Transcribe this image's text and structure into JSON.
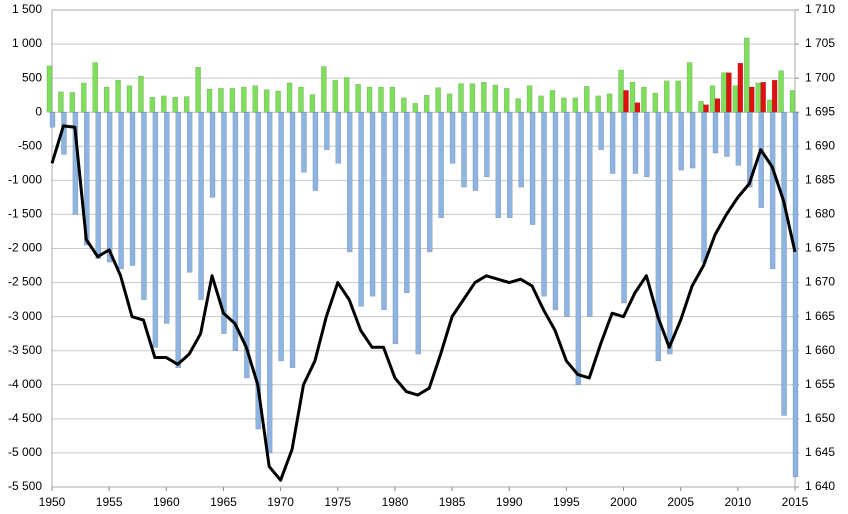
{
  "chart_data": {
    "type": "bar_line",
    "x": [
      1950,
      1951,
      1952,
      1953,
      1954,
      1955,
      1956,
      1957,
      1958,
      1959,
      1960,
      1961,
      1962,
      1963,
      1964,
      1965,
      1966,
      1967,
      1968,
      1969,
      1970,
      1971,
      1972,
      1973,
      1974,
      1975,
      1976,
      1977,
      1978,
      1979,
      1980,
      1981,
      1982,
      1983,
      1984,
      1985,
      1986,
      1987,
      1988,
      1989,
      1990,
      1991,
      1992,
      1993,
      1994,
      1995,
      1996,
      1997,
      1998,
      1999,
      2000,
      2001,
      2002,
      2003,
      2004,
      2005,
      2006,
      2007,
      2008,
      2009,
      2010,
      2011,
      2012,
      2013,
      2014,
      2015
    ],
    "xlim": [
      1950,
      2015
    ],
    "xticks": [
      1950,
      1955,
      1960,
      1965,
      1970,
      1975,
      1980,
      1985,
      1990,
      1995,
      2000,
      2005,
      2010,
      2015
    ],
    "ylim": [
      -5500,
      1500
    ],
    "yticks": [
      {
        "value": -5500,
        "label": "-5 500"
      },
      {
        "value": -5000,
        "label": "-5 000"
      },
      {
        "value": -4500,
        "label": "-4 500"
      },
      {
        "value": -4000,
        "label": "-4 000"
      },
      {
        "value": -3500,
        "label": "-3 500"
      },
      {
        "value": -3000,
        "label": "-3 000"
      },
      {
        "value": -2500,
        "label": "-2 500"
      },
      {
        "value": -2000,
        "label": "-2 000"
      },
      {
        "value": -1500,
        "label": "-1 500"
      },
      {
        "value": -1000,
        "label": "-1 000"
      },
      -500,
      0,
      500,
      {
        "value": 1000,
        "label": "1 000"
      },
      {
        "value": 1500,
        "label": "1 500"
      }
    ],
    "y2lim": [
      1640,
      1710
    ],
    "y2ticks": [
      {
        "value": 1640,
        "label": "1 640"
      },
      {
        "value": 1645,
        "label": "1 645"
      },
      {
        "value": 1650,
        "label": "1 650"
      },
      {
        "value": 1655,
        "label": "1 655"
      },
      {
        "value": 1660,
        "label": "1 660"
      },
      {
        "value": 1665,
        "label": "1 665"
      },
      {
        "value": 1670,
        "label": "1 670"
      },
      {
        "value": 1675,
        "label": "1 675"
      },
      {
        "value": 1680,
        "label": "1 680"
      },
      {
        "value": 1685,
        "label": "1 685"
      },
      {
        "value": 1690,
        "label": "1 690"
      },
      {
        "value": 1695,
        "label": "1 695"
      },
      {
        "value": 1700,
        "label": "1 700"
      },
      {
        "value": 1705,
        "label": "1 705"
      },
      {
        "value": 1710,
        "label": "1 710"
      }
    ],
    "grid": true,
    "series": [
      {
        "kind": "bar",
        "color": "#7ee05a",
        "values": [
          680,
          300,
          290,
          430,
          730,
          370,
          470,
          390,
          530,
          220,
          240,
          220,
          230,
          660,
          340,
          350,
          350,
          370,
          390,
          330,
          310,
          430,
          370,
          260,
          670,
          470,
          510,
          410,
          370,
          370,
          370,
          210,
          130,
          250,
          360,
          270,
          420,
          420,
          440,
          400,
          350,
          200,
          390,
          240,
          320,
          210,
          210,
          380,
          240,
          270,
          620,
          440,
          370,
          280,
          460,
          460,
          730,
          160,
          390,
          580,
          390,
          1090,
          430,
          180,
          610,
          320
        ]
      },
      {
        "kind": "bar",
        "color": "#e01010",
        "values": [
          null,
          null,
          null,
          null,
          null,
          null,
          null,
          null,
          null,
          null,
          null,
          null,
          null,
          null,
          null,
          null,
          null,
          null,
          null,
          null,
          null,
          null,
          null,
          null,
          null,
          null,
          null,
          null,
          null,
          null,
          null,
          null,
          null,
          null,
          null,
          null,
          null,
          null,
          null,
          null,
          null,
          null,
          null,
          null,
          null,
          null,
          null,
          null,
          null,
          null,
          320,
          140,
          null,
          null,
          null,
          null,
          null,
          110,
          200,
          580,
          720,
          370,
          440,
          470,
          null,
          null
        ]
      },
      {
        "kind": "bar",
        "color": "#8db4e2",
        "values": [
          -220,
          -620,
          -1500,
          -1950,
          -2150,
          -2200,
          -2300,
          -2250,
          -2750,
          -3450,
          -3100,
          -3750,
          -2350,
          -2750,
          -1250,
          -3250,
          -3500,
          -3900,
          -4650,
          -5000,
          -3650,
          -3750,
          -880,
          -1150,
          -550,
          -750,
          -2050,
          -2850,
          -2700,
          -2900,
          -3400,
          -2650,
          -3550,
          -2050,
          -1550,
          -750,
          -1100,
          -1150,
          -950,
          -1550,
          -1550,
          -1100,
          -1650,
          -2700,
          -2900,
          -3000,
          -4000,
          -3000,
          -550,
          -900,
          -2800,
          -900,
          -950,
          -3650,
          -3550,
          -850,
          -820,
          -2200,
          -600,
          -650,
          -780,
          -1100,
          -1400,
          -2300,
          -4450,
          -5350
        ]
      },
      {
        "kind": "line",
        "axis": "y2",
        "color": "#000000",
        "values": [
          1687.5,
          1693,
          1692.8,
          1676.3,
          1673.8,
          1674.8,
          1671,
          1665,
          1664.5,
          1659,
          1659,
          1658,
          1659.5,
          1662.5,
          1671,
          1665.5,
          1664,
          1660.5,
          1655,
          1643,
          1641,
          1645.5,
          1655,
          1658.5,
          1665,
          1670,
          1667.5,
          1663,
          1660.5,
          1660.5,
          1656,
          1654,
          1653.5,
          1654.5,
          1659.5,
          1665,
          1667.5,
          1670,
          1671,
          1670.5,
          1670,
          1670.5,
          1669.5,
          1666,
          1663,
          1658.5,
          1656.5,
          1656,
          1661,
          1665.5,
          1665,
          1668.5,
          1671,
          1665,
          1660.5,
          1664.5,
          1669.5,
          1672.5,
          1677,
          1680,
          1682.5,
          1684.5,
          1689.5,
          1687,
          1682,
          1674.5
        ]
      }
    ]
  }
}
